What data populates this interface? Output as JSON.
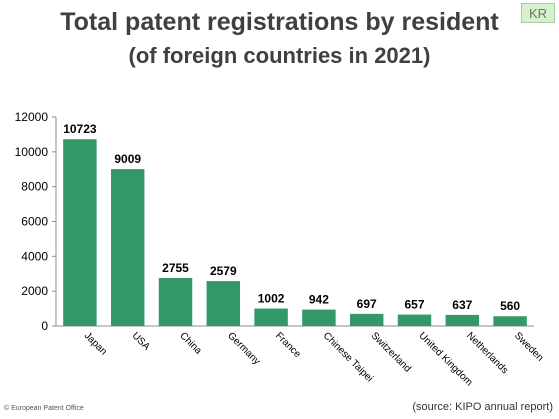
{
  "header": {
    "title": "Total patent registrations by resident",
    "subtitle": "(of foreign countries in 2021)",
    "badge": "KR"
  },
  "footer": {
    "copyright": "© European Patent Office",
    "source": "(source: KIPO annual report)"
  },
  "chart_data": {
    "type": "bar",
    "title": "Total patent registrations by resident",
    "subtitle": "(of foreign countries in 2021)",
    "categories": [
      "Japan",
      "USA",
      "China",
      "Germany",
      "France",
      "Chinese Taipei",
      "Switzerland",
      "United Kingdom",
      "Netherlands",
      "Sweden"
    ],
    "values": [
      10723,
      9009,
      2755,
      2579,
      1002,
      942,
      697,
      657,
      637,
      560
    ],
    "ylim": [
      0,
      12000
    ],
    "yticks": [
      0,
      2000,
      4000,
      6000,
      8000,
      10000,
      12000
    ],
    "grid": false,
    "legend": "none",
    "bar_color": "#339966",
    "xlabel": "",
    "ylabel": ""
  }
}
